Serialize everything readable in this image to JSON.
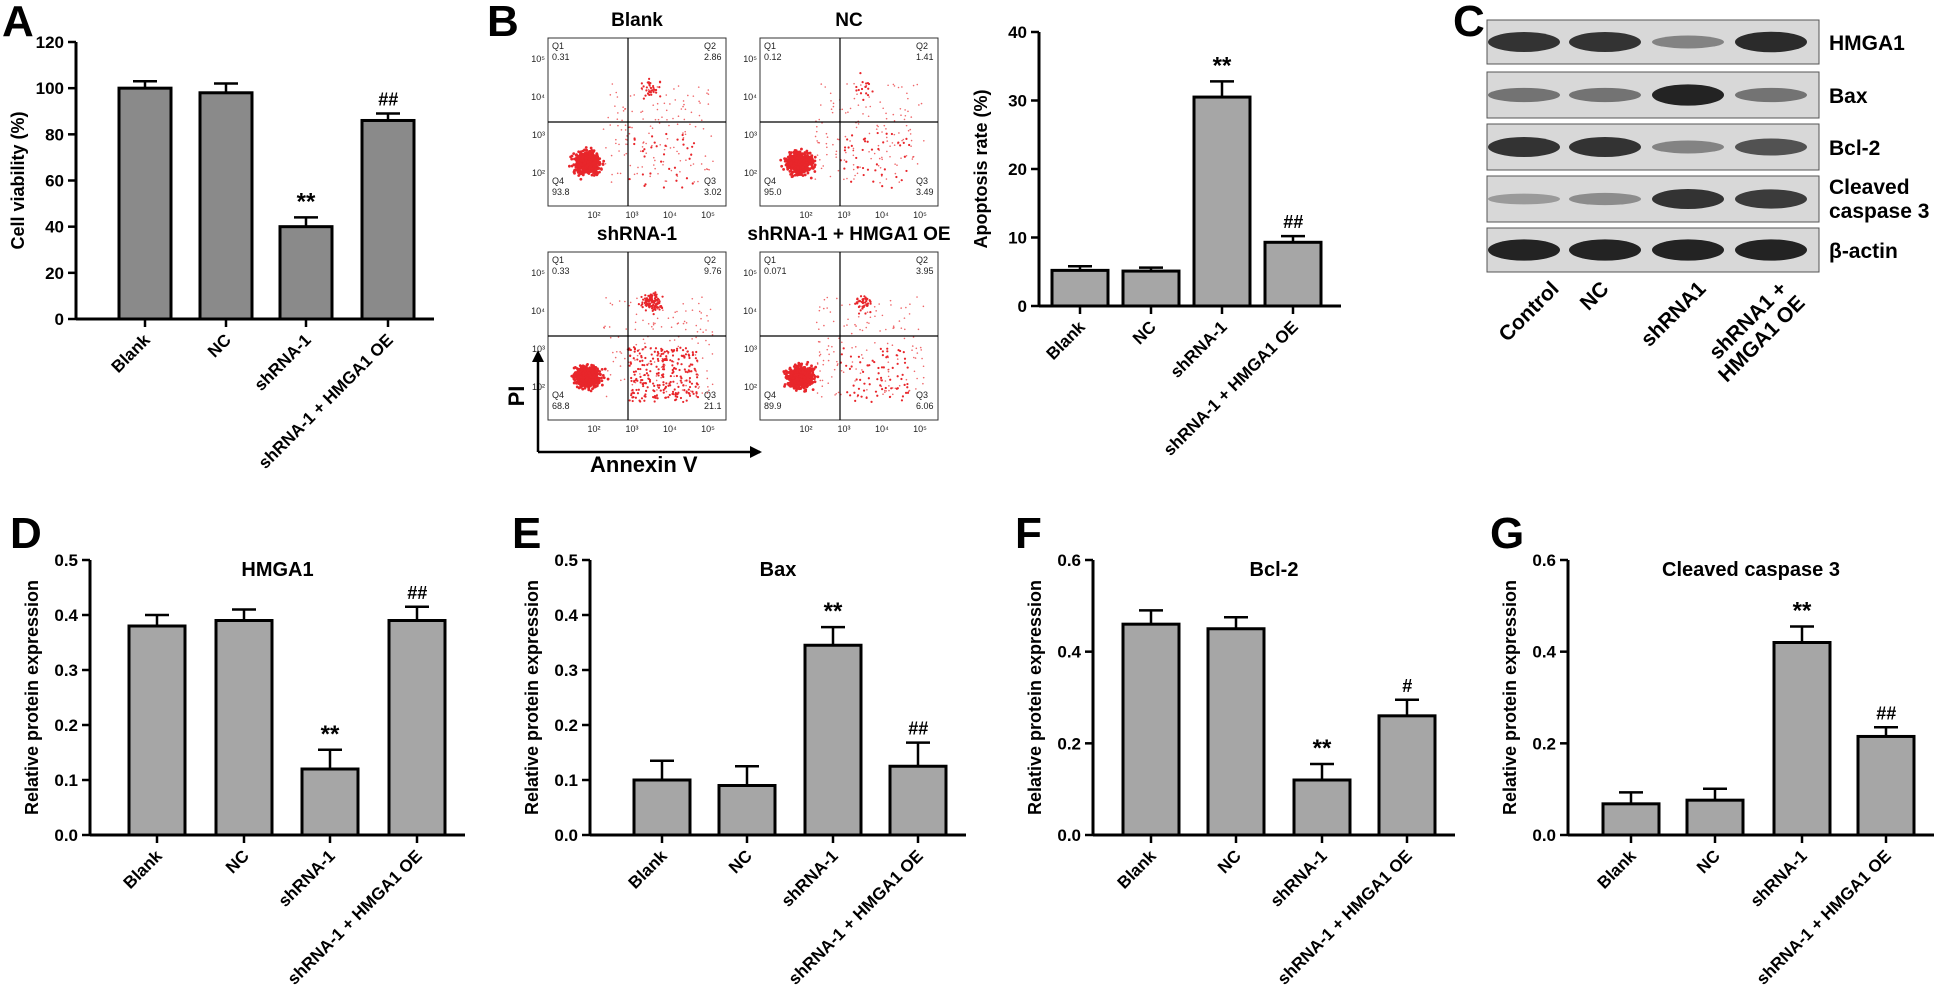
{
  "colors": {
    "bar_fill": "#a6a6a6",
    "bar_fill_dark": "#8a8a8a",
    "dot": "#e8262b",
    "blot_bg": "#d8d8d8",
    "band": "#1a1a1a"
  },
  "chart_data": [
    {
      "type": "bar",
      "panel": "A",
      "categories": [
        "Blank",
        "NC",
        "shRNA-1",
        "shRNA-1 + HMGA1 OE"
      ],
      "values": [
        100,
        98,
        40,
        86
      ],
      "errors": [
        3,
        4,
        4,
        3
      ],
      "annotations": [
        "",
        "",
        "**",
        "##"
      ],
      "title": "",
      "ylabel": "Cell viability (%)",
      "ylim": [
        0,
        120
      ],
      "yticks": [
        "0",
        "20",
        "40",
        "60",
        "80",
        "100",
        "120"
      ]
    },
    {
      "type": "bar",
      "panel": "B",
      "categories": [
        "Blank",
        "NC",
        "shRNA-1",
        "shRNA-1 + HMGA1 OE"
      ],
      "values": [
        5.2,
        5.1,
        30.5,
        9.3
      ],
      "errors": [
        0.6,
        0.5,
        2.3,
        0.9
      ],
      "annotations": [
        "",
        "",
        "**",
        "##"
      ],
      "title": "",
      "ylabel": "Apoptosis rate (%)",
      "ylim": [
        0,
        40
      ],
      "yticks": [
        "0",
        "10",
        "20",
        "30",
        "40"
      ]
    },
    {
      "type": "bar",
      "panel": "D",
      "categories": [
        "Blank",
        "NC",
        "shRNA-1",
        "shRNA-1 + HMGA1 OE"
      ],
      "values": [
        0.38,
        0.39,
        0.12,
        0.39
      ],
      "errors": [
        0.02,
        0.02,
        0.035,
        0.025
      ],
      "annotations": [
        "",
        "",
        "**",
        "##"
      ],
      "title": "HMGA1",
      "ylabel": "Relative protein expression",
      "ylim": [
        0,
        0.5
      ],
      "yticks": [
        "0.0",
        "0.1",
        "0.2",
        "0.3",
        "0.4",
        "0.5"
      ]
    },
    {
      "type": "bar",
      "panel": "E",
      "categories": [
        "Blank",
        "NC",
        "shRNA-1",
        "shRNA-1 + HMGA1 OE"
      ],
      "values": [
        0.1,
        0.09,
        0.345,
        0.125
      ],
      "errors": [
        0.035,
        0.035,
        0.033,
        0.043
      ],
      "annotations": [
        "",
        "",
        "**",
        "##"
      ],
      "title": "Bax",
      "ylabel": "Relative protein expression",
      "ylim": [
        0,
        0.5
      ],
      "yticks": [
        "0.0",
        "0.1",
        "0.2",
        "0.3",
        "0.4",
        "0.5"
      ]
    },
    {
      "type": "bar",
      "panel": "F",
      "categories": [
        "Blank",
        "NC",
        "shRNA-1",
        "shRNA-1 + HMGA1 OE"
      ],
      "values": [
        0.46,
        0.45,
        0.12,
        0.26
      ],
      "errors": [
        0.03,
        0.025,
        0.035,
        0.035
      ],
      "annotations": [
        "",
        "",
        "**",
        "#"
      ],
      "title": "Bcl-2",
      "ylabel": "Relative protein expression",
      "ylim": [
        0,
        0.6
      ],
      "yticks": [
        "0.0",
        "0.2",
        "0.4",
        "0.6"
      ]
    },
    {
      "type": "bar",
      "panel": "G",
      "categories": [
        "Blank",
        "NC",
        "shRNA-1",
        "shRNA-1 + HMGA1 OE"
      ],
      "values": [
        0.068,
        0.076,
        0.42,
        0.215
      ],
      "errors": [
        0.025,
        0.025,
        0.035,
        0.02
      ],
      "annotations": [
        "",
        "",
        "**",
        "##"
      ],
      "title": "Cleaved caspase 3",
      "ylabel": "Relative protein expression",
      "ylim": [
        0,
        0.6
      ],
      "yticks": [
        "0.0",
        "0.2",
        "0.4",
        "0.6"
      ]
    }
  ],
  "flow": {
    "panels": [
      {
        "title": "Blank",
        "q1": "0.31",
        "q2": "2.86",
        "q3": "3.02",
        "q4": "93.8"
      },
      {
        "title": "NC",
        "q1": "0.12",
        "q2": "1.41",
        "q3": "3.49",
        "q4": "95.0"
      },
      {
        "title": "shRNA-1",
        "q1": "0.33",
        "q2": "9.76",
        "q3": "21.1",
        "q4": "68.8"
      },
      {
        "title": "shRNA-1 + HMGA1 OE",
        "q1": "0.071",
        "q2": "3.95",
        "q3": "6.06",
        "q4": "89.9"
      }
    ],
    "quadrant_names": [
      "Q1",
      "Q2",
      "Q3",
      "Q4"
    ],
    "tick_exps": [
      "10²",
      "10³",
      "10⁴",
      "10⁵"
    ],
    "x_axis_label": "Annexin V",
    "y_axis_label": "PI"
  },
  "western": {
    "lanes": [
      "Control",
      "NC",
      "shRNA1",
      "shRNA1 + HMGA1 OE"
    ],
    "proteins": [
      "HMGA1",
      "Bax",
      "Bcl-2",
      "Cleaved caspase 3",
      "β-actin"
    ],
    "intensity": [
      [
        0.85,
        0.85,
        0.35,
        0.9
      ],
      [
        0.45,
        0.45,
        0.95,
        0.45
      ],
      [
        0.85,
        0.85,
        0.35,
        0.65
      ],
      [
        0.2,
        0.3,
        0.85,
        0.8
      ],
      [
        0.95,
        0.95,
        0.95,
        0.95
      ]
    ]
  },
  "panel_letters": [
    "A",
    "B",
    "C",
    "D",
    "E",
    "F",
    "G"
  ]
}
